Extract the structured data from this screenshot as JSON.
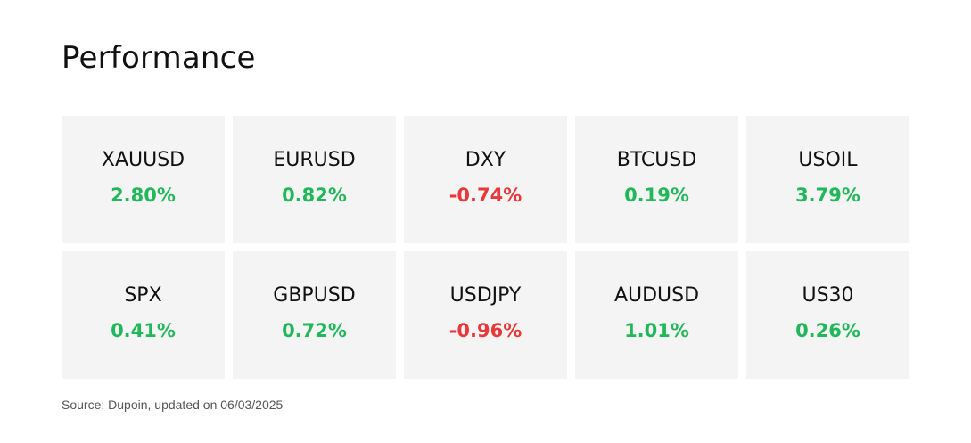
{
  "title": "Performance",
  "colors": {
    "tile_background": "#f4f4f4",
    "positive": "#22b85a",
    "negative": "#e8393a"
  },
  "instruments": [
    {
      "symbol": "XAUUSD",
      "change": "2.80%",
      "direction": "up"
    },
    {
      "symbol": "EURUSD",
      "change": "0.82%",
      "direction": "up"
    },
    {
      "symbol": "DXY",
      "change": "-0.74%",
      "direction": "down"
    },
    {
      "symbol": "BTCUSD",
      "change": "0.19%",
      "direction": "up"
    },
    {
      "symbol": "USOIL",
      "change": "3.79%",
      "direction": "up"
    },
    {
      "symbol": "SPX",
      "change": "0.41%",
      "direction": "up"
    },
    {
      "symbol": "GBPUSD",
      "change": "0.72%",
      "direction": "up"
    },
    {
      "symbol": "USDJPY",
      "change": "-0.96%",
      "direction": "down"
    },
    {
      "symbol": "AUDUSD",
      "change": "1.01%",
      "direction": "up"
    },
    {
      "symbol": "US30",
      "change": "0.26%",
      "direction": "up"
    }
  ],
  "source_note": "Source: Dupoin, updated on 06/03/2025"
}
